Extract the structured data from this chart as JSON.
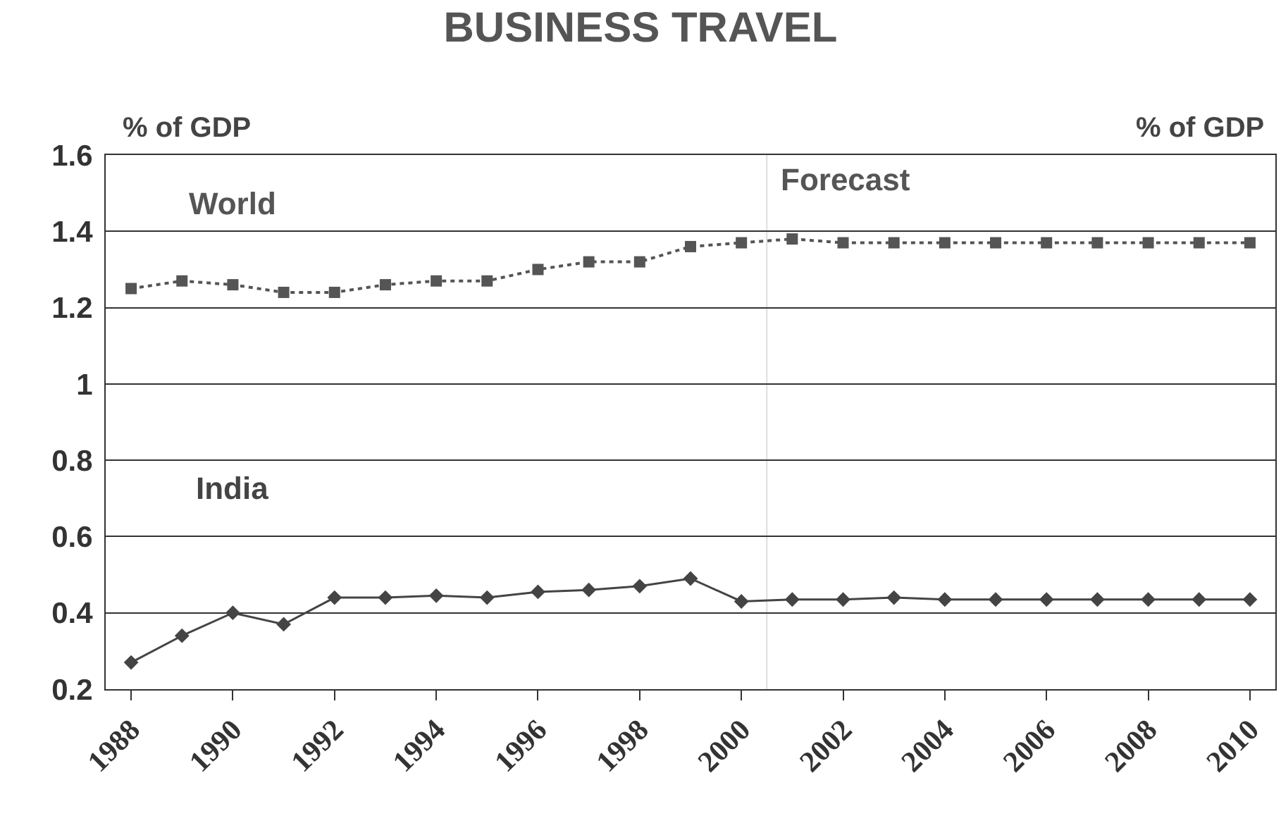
{
  "chart_data": {
    "type": "line",
    "title": "BUSINESS TRAVEL",
    "ylabel": "% of GDP",
    "annotations": [
      "% of GDP"
    ],
    "x": [
      1988,
      1989,
      1990,
      1991,
      1992,
      1993,
      1994,
      1995,
      1996,
      1997,
      1998,
      1999,
      2000,
      2001,
      2002,
      2003,
      2004,
      2005,
      2006,
      2007,
      2008,
      2009,
      2010
    ],
    "series": [
      {
        "name": "World",
        "color": "#555555",
        "marker": "square",
        "line_style": "dotted",
        "values": [
          1.25,
          1.27,
          1.26,
          1.24,
          1.24,
          1.26,
          1.27,
          1.27,
          1.3,
          1.32,
          1.32,
          1.36,
          1.37,
          1.38,
          1.37,
          1.37,
          1.37,
          1.37,
          1.37,
          1.37,
          1.37,
          1.37,
          1.37
        ]
      },
      {
        "name": "India",
        "color": "#444444",
        "marker": "diamond",
        "line_style": "solid",
        "values": [
          0.27,
          0.34,
          0.4,
          0.37,
          0.44,
          0.44,
          0.445,
          0.44,
          0.455,
          0.46,
          0.47,
          0.49,
          0.43,
          0.435,
          0.435,
          0.44,
          0.435,
          0.435,
          0.435,
          0.435,
          0.435,
          0.435,
          0.435
        ]
      }
    ],
    "xlim": [
      1987.5,
      2010.5
    ],
    "xticks": [
      1988,
      1990,
      1992,
      1994,
      1996,
      1998,
      2000,
      2002,
      2004,
      2006,
      2008,
      2010
    ],
    "ylim": [
      0.2,
      1.6
    ],
    "yticks": [
      0.2,
      {
        "value": 0.4,
        "label": "0.4"
      },
      {
        "value": 0.6,
        "label": "0.6"
      },
      {
        "value": 0.8,
        "label": "0.8"
      },
      1,
      {
        "value": 1.2,
        "label": "1.2"
      },
      {
        "value": 1.4,
        "label": "1.4"
      },
      {
        "value": 1.6,
        "label": "1.6"
      }
    ],
    "ref_lines": [
      {
        "axis": "x",
        "value": 2000.5,
        "label": "Forecast",
        "color": "#dddddd"
      }
    ],
    "grid": "y",
    "legend": false
  }
}
